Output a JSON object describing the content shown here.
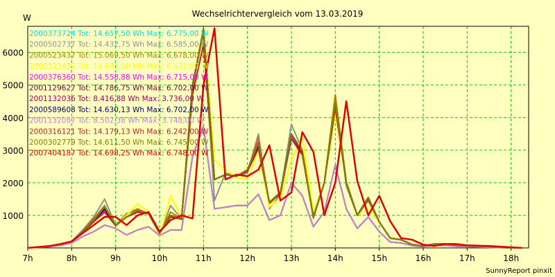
{
  "chart_data": {
    "type": "line",
    "title": "Wechselrichtervergleich vom 13.03.2019",
    "ylabel": "W",
    "footer": "SunnyReport pinxit",
    "background": "#ffffc0",
    "grid": true,
    "grid_color": "#00cc00",
    "legend_placement": "top-left",
    "xlim": [
      7,
      18.4
    ],
    "ylim": [
      0,
      6800
    ],
    "x_ticks": [
      7,
      8,
      9,
      10,
      11,
      12,
      13,
      14,
      15,
      16,
      17,
      18
    ],
    "x_tick_labels": [
      "7h",
      "8h",
      "9h",
      "10h",
      "11h",
      "12h",
      "13h",
      "14h",
      "15h",
      "16h",
      "17h",
      "18h"
    ],
    "y_ticks": [
      1000,
      2000,
      3000,
      4000,
      5000,
      6000
    ],
    "y_tick_labels": [
      "1000",
      "2000",
      "3000",
      "4000",
      "5000",
      "6000"
    ],
    "x": [
      7.0,
      7.25,
      7.5,
      7.75,
      8.0,
      8.25,
      8.5,
      8.75,
      9.0,
      9.25,
      9.5,
      9.75,
      10.0,
      10.25,
      10.5,
      10.75,
      11.0,
      11.25,
      11.5,
      11.75,
      12.0,
      12.25,
      12.5,
      12.75,
      13.0,
      13.25,
      13.5,
      13.75,
      14.0,
      14.25,
      14.5,
      14.75,
      15.0,
      15.25,
      15.5,
      15.75,
      16.0,
      16.25,
      16.5,
      16.75,
      17.0,
      17.25,
      17.5,
      17.75,
      18.0,
      18.25
    ],
    "series": [
      {
        "name": "2000373724 Tot: 14.657,50 Wh Max: 6.775,00 W",
        "color": "#00e0e0",
        "values": [
          0,
          30,
          60,
          120,
          200,
          500,
          850,
          1200,
          700,
          950,
          1150,
          1050,
          450,
          950,
          880,
          4900,
          6750,
          2100,
          2250,
          2200,
          2400,
          3000,
          1400,
          1700,
          3400,
          2900,
          950,
          2000,
          4300,
          2000,
          1000,
          1500,
          800,
          300,
          250,
          100,
          60,
          120,
          120,
          80,
          70,
          60,
          40,
          20,
          0,
          0
        ]
      },
      {
        "name": "2000502737 Tot: 14.432,75 Wh Max: 6.585,00 W",
        "color": "#909090",
        "values": [
          0,
          30,
          60,
          120,
          200,
          550,
          950,
          1500,
          700,
          1050,
          1150,
          1050,
          400,
          1300,
          900,
          4850,
          6580,
          1450,
          2300,
          2200,
          2300,
          3500,
          1200,
          1650,
          3800,
          3000,
          900,
          2000,
          4650,
          1900,
          1000,
          1550,
          800,
          300,
          250,
          100,
          60,
          120,
          120,
          80,
          70,
          60,
          40,
          20,
          0,
          0
        ]
      },
      {
        "name": "2000523437 Tot: 15.069,50 Wh Max: 6.678,00 W",
        "color": "#b08000",
        "values": [
          0,
          30,
          60,
          120,
          200,
          500,
          900,
          1300,
          700,
          1050,
          1200,
          1050,
          480,
          1100,
          900,
          5000,
          6670,
          2100,
          2250,
          2200,
          2350,
          3400,
          1350,
          1700,
          3500,
          3000,
          1000,
          2000,
          4700,
          2050,
          1000,
          1450,
          800,
          300,
          250,
          100,
          60,
          120,
          120,
          80,
          70,
          60,
          40,
          20,
          0,
          0
        ]
      },
      {
        "name": "2000523439 Tot: 14.681,50 Wh Max: 6.671,00 W",
        "color": "#ffff00",
        "values": [
          0,
          30,
          60,
          120,
          200,
          450,
          800,
          1100,
          700,
          1000,
          1350,
          1100,
          350,
          1600,
          950,
          4700,
          6670,
          2700,
          2400,
          2150,
          2100,
          3000,
          1250,
          1550,
          2700,
          3400,
          1100,
          2000,
          4100,
          2050,
          1000,
          1200,
          800,
          300,
          250,
          100,
          60,
          120,
          120,
          80,
          70,
          60,
          40,
          20,
          0,
          0
        ]
      },
      {
        "name": "2000376360 Tot: 14.558,88 Wh Max: 6.715,00 W",
        "color": "#ff00ff",
        "values": [
          0,
          30,
          60,
          120,
          200,
          500,
          800,
          1150,
          700,
          950,
          1150,
          1050,
          450,
          1000,
          880,
          4900,
          6710,
          2100,
          2250,
          2200,
          2400,
          3250,
          1400,
          1700,
          3450,
          2900,
          950,
          2000,
          4400,
          2000,
          1000,
          1500,
          800,
          300,
          250,
          100,
          60,
          120,
          120,
          80,
          70,
          60,
          40,
          20,
          0,
          0
        ]
      },
      {
        "name": "2001129627 Tot: 14.786,75 Wh Max: 6.702,00 W",
        "color": "#800040",
        "values": [
          0,
          30,
          60,
          120,
          200,
          500,
          850,
          1200,
          700,
          950,
          1100,
          1050,
          450,
          1000,
          880,
          5000,
          6700,
          2100,
          2250,
          2200,
          2400,
          3100,
          1400,
          1700,
          3500,
          2900,
          950,
          2000,
          4400,
          2000,
          1000,
          1550,
          800,
          300,
          250,
          100,
          60,
          120,
          120,
          80,
          70,
          60,
          40,
          20,
          0,
          0
        ]
      },
      {
        "name": "2001132036 Tot: 8.416,88 Wh Max: 3.736,00 W",
        "color": "#a00060",
        "values": [
          0,
          20,
          40,
          80,
          150,
          350,
          500,
          700,
          600,
          400,
          550,
          650,
          380,
          550,
          550,
          2800,
          3730,
          1200,
          1250,
          1300,
          1300,
          1650,
          850,
          1000,
          2000,
          1600,
          650,
          1100,
          2550,
          1200,
          600,
          950,
          500,
          180,
          150,
          70,
          40,
          80,
          80,
          50,
          40,
          30,
          20,
          10,
          0,
          0
        ]
      },
      {
        "name": "2000589608 Tot: 14.630,13 Wh Max: 6.702,00 W",
        "color": "#000080",
        "values": [
          0,
          30,
          60,
          120,
          200,
          500,
          850,
          1200,
          700,
          950,
          1100,
          1050,
          450,
          1000,
          880,
          4950,
          6700,
          2100,
          2250,
          2200,
          2400,
          3100,
          1400,
          1700,
          3500,
          2900,
          950,
          2000,
          4400,
          2000,
          1000,
          1550,
          800,
          300,
          250,
          100,
          60,
          120,
          120,
          80,
          70,
          60,
          40,
          20,
          0,
          0
        ]
      },
      {
        "name": "2001132087 Tot: 8.502,38 Wh Max: 3.748,00 W",
        "color": "#c080d0",
        "values": [
          0,
          20,
          40,
          80,
          150,
          350,
          500,
          700,
          600,
          400,
          550,
          650,
          380,
          550,
          550,
          2800,
          3740,
          1200,
          1250,
          1300,
          1300,
          1650,
          850,
          1000,
          2000,
          1600,
          650,
          1100,
          2550,
          1200,
          600,
          950,
          500,
          180,
          150,
          70,
          40,
          80,
          80,
          50,
          40,
          30,
          20,
          10,
          0,
          0
        ]
      },
      {
        "name": "2000316121 Tot: 14.179,13 Wh Max: 6.242,00 W",
        "color": "#c02020",
        "values": [
          0,
          30,
          60,
          120,
          200,
          480,
          800,
          1100,
          680,
          950,
          1100,
          1050,
          450,
          950,
          880,
          4700,
          6240,
          2100,
          2250,
          2200,
          2350,
          3050,
          1400,
          1650,
          3350,
          2850,
          950,
          2000,
          4300,
          2000,
          1000,
          1500,
          800,
          300,
          250,
          100,
          60,
          120,
          120,
          80,
          70,
          60,
          40,
          20,
          0,
          0
        ]
      },
      {
        "name": "2000302779 Tot: 14.611,50 Wh Max: 6.745,00 W",
        "color": "#808000",
        "values": [
          0,
          30,
          60,
          120,
          200,
          500,
          850,
          1250,
          700,
          950,
          1150,
          1050,
          450,
          1000,
          880,
          4950,
          6740,
          2100,
          2250,
          2200,
          2400,
          3200,
          1400,
          1700,
          3500,
          2950,
          950,
          2000,
          4450,
          2000,
          1000,
          1550,
          800,
          300,
          250,
          100,
          60,
          120,
          120,
          80,
          70,
          60,
          40,
          20,
          0,
          0
        ]
      },
      {
        "name": "2007404187 Tot: 14.698,25 Wh Max: 6.748,00 W",
        "color": "#e00000",
        "values": [
          0,
          30,
          60,
          120,
          200,
          450,
          700,
          950,
          950,
          700,
          1000,
          1100,
          500,
          850,
          1000,
          900,
          5000,
          6740,
          2100,
          2250,
          2200,
          2400,
          3150,
          1450,
          1700,
          3550,
          2950,
          1000,
          2000,
          4500,
          2050,
          1000,
          1600,
          820,
          300,
          250,
          100,
          60,
          120,
          120,
          80,
          70,
          60,
          40,
          20,
          0
        ]
      }
    ]
  }
}
